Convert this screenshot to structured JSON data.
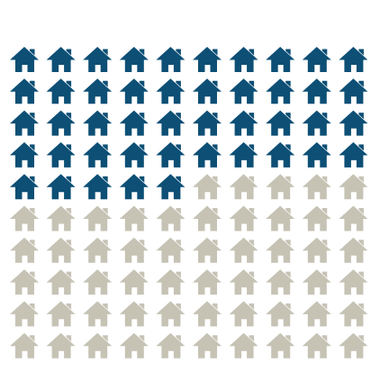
{
  "chart_data": {
    "type": "waffle",
    "values": [
      45,
      55
    ],
    "colors": [
      "#0d4f75",
      "#c6c3b5"
    ],
    "columns": 10
  }
}
